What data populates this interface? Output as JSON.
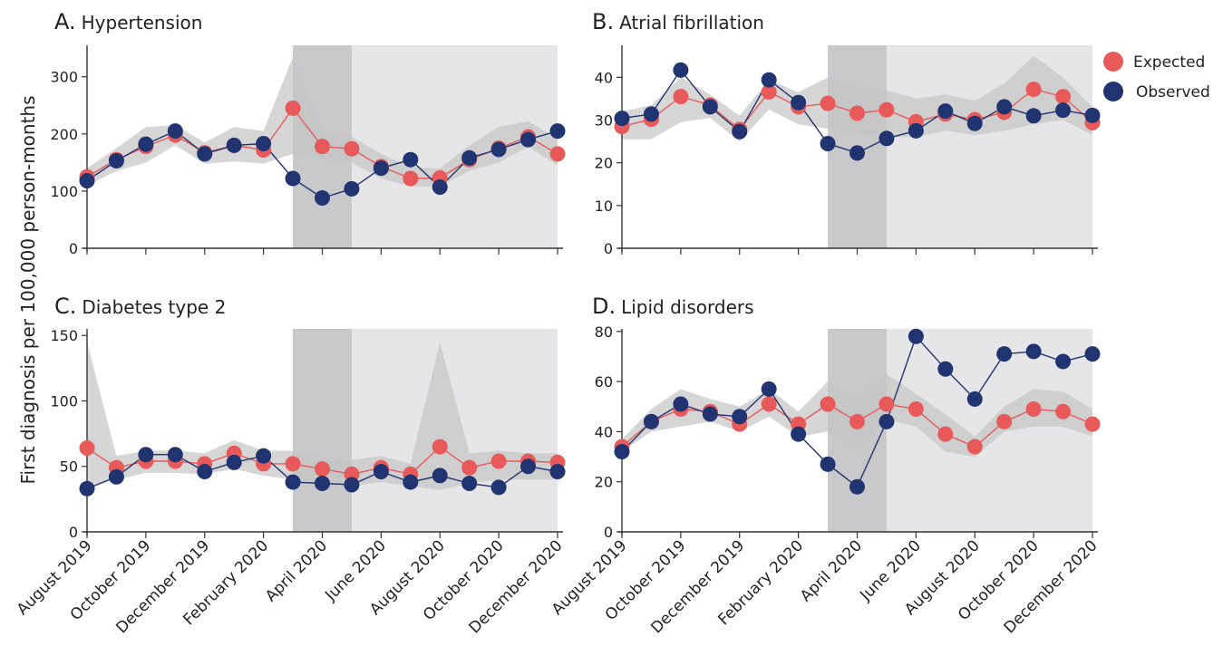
{
  "figure": {
    "ylabel": "First diagnosis per 100,000 person-months",
    "legend_placement": "top-right",
    "colors": {
      "expected": "#e85a5a",
      "observed": "#1f3470",
      "ci_band": "#c4c4c4",
      "lockdown_shade": "#c9c9cc",
      "post_shade": "#e6e6e8"
    },
    "legend": [
      {
        "key": "expected",
        "label": "Expected"
      },
      {
        "key": "observed",
        "label": "Observed"
      }
    ]
  },
  "chart_data": [
    {
      "type": "line",
      "panel": "A.",
      "title": "Hypertension",
      "x": [
        "August 2019",
        "September 2019",
        "October 2019",
        "November 2019",
        "December 2019",
        "January 2020",
        "February 2020",
        "March 2020",
        "April 2020",
        "May 2020",
        "June 2020",
        "July 2020",
        "August 2020",
        "September 2020",
        "October 2020",
        "November 2020",
        "December 2020"
      ],
      "x_tick_labels": [
        "August 2019",
        "October 2019",
        "December 2019",
        "February 2020",
        "April 2020",
        "June 2020",
        "August 2020",
        "October 2020",
        "December 2020"
      ],
      "ylim": [
        0,
        355
      ],
      "yticks": [
        0,
        100,
        200,
        300
      ],
      "lockdown_period": [
        "March 2020",
        "May 2020"
      ],
      "post_period": [
        "May 2020",
        "December 2020"
      ],
      "series": [
        {
          "name": "Expected",
          "values": [
            125,
            155,
            178,
            198,
            167,
            180,
            172,
            245,
            178,
            174,
            143,
            122,
            123,
            155,
            175,
            195,
            165
          ]
        },
        {
          "name": "Observed",
          "values": [
            118,
            153,
            182,
            205,
            165,
            180,
            183,
            122,
            88,
            104,
            140,
            155,
            107,
            158,
            173,
            190,
            205
          ]
        }
      ],
      "band_lower": [
        110,
        135,
        150,
        180,
        148,
        152,
        148,
        165,
        155,
        150,
        122,
        108,
        108,
        135,
        150,
        178,
        145
      ],
      "band_upper": [
        140,
        175,
        212,
        215,
        185,
        212,
        205,
        335,
        205,
        195,
        165,
        142,
        140,
        180,
        212,
        222,
        192
      ]
    },
    {
      "type": "line",
      "panel": "B.",
      "title": "Atrial fibrillation",
      "x": [
        "August 2019",
        "September 2019",
        "October 2019",
        "November 2019",
        "December 2019",
        "January 2020",
        "February 2020",
        "March 2020",
        "April 2020",
        "May 2020",
        "June 2020",
        "July 2020",
        "August 2020",
        "September 2020",
        "October 2020",
        "November 2020",
        "December 2020"
      ],
      "x_tick_labels": [
        "August 2019",
        "October 2019",
        "December 2019",
        "February 2020",
        "April 2020",
        "June 2020",
        "August 2020",
        "October 2020",
        "December 2020"
      ],
      "ylim": [
        0,
        47.5
      ],
      "yticks": [
        0,
        10,
        20,
        30,
        40
      ],
      "lockdown_period": [
        "March 2020",
        "May 2020"
      ],
      "post_period": [
        "May 2020",
        "December 2020"
      ],
      "series": [
        {
          "name": "Expected",
          "values": [
            28.5,
            30.2,
            35.5,
            33.5,
            27.8,
            36.6,
            33.1,
            33.9,
            31.6,
            32.4,
            29.6,
            31.4,
            30.1,
            31.8,
            37.2,
            35.5,
            29.4
          ]
        },
        {
          "name": "Observed",
          "values": [
            30.4,
            31.4,
            41.7,
            33.1,
            27.3,
            39.4,
            34.1,
            24.5,
            22.3,
            25.7,
            27.5,
            32.1,
            29.2,
            33.1,
            31.0,
            32.3,
            31.1
          ]
        }
      ],
      "band_lower": [
        25.5,
        25.5,
        29.5,
        30.5,
        25.0,
        32.5,
        29.0,
        28.0,
        26.5,
        26.0,
        26.0,
        27.5,
        26.5,
        27.5,
        29.0,
        30.0,
        26.5
      ],
      "band_upper": [
        32.0,
        33.5,
        40.0,
        36.0,
        31.0,
        39.5,
        36.5,
        40.0,
        38.0,
        37.0,
        35.0,
        36.0,
        34.5,
        38.5,
        45.0,
        40.0,
        33.0
      ]
    },
    {
      "type": "line",
      "panel": "C.",
      "title": "Diabetes type 2",
      "x": [
        "August 2019",
        "September 2019",
        "October 2019",
        "November 2019",
        "December 2019",
        "January 2020",
        "February 2020",
        "March 2020",
        "April 2020",
        "May 2020",
        "June 2020",
        "July 2020",
        "August 2020",
        "September 2020",
        "October 2020",
        "November 2020",
        "December 2020"
      ],
      "x_tick_labels": [
        "August 2019",
        "October 2019",
        "December 2019",
        "February 2020",
        "April 2020",
        "June 2020",
        "August 2020",
        "October 2020",
        "December 2020"
      ],
      "ylim": [
        0,
        155
      ],
      "yticks": [
        0,
        50,
        100,
        150
      ],
      "lockdown_period": [
        "March 2020",
        "May 2020"
      ],
      "post_period": [
        "May 2020",
        "December 2020"
      ],
      "series": [
        {
          "name": "Expected",
          "values": [
            64,
            49,
            54,
            54,
            52,
            60,
            52,
            52,
            48,
            44,
            49,
            44,
            65,
            49,
            54,
            54,
            53
          ]
        },
        {
          "name": "Observed",
          "values": [
            33,
            42,
            59,
            59,
            46,
            53,
            58,
            38,
            37,
            36,
            46,
            38,
            43,
            37,
            34,
            50,
            46
          ]
        }
      ],
      "band_lower": [
        35,
        40,
        45,
        45,
        44,
        48,
        43,
        40,
        36,
        35,
        38,
        35,
        32,
        37,
        40,
        40,
        40
      ],
      "band_upper": [
        145,
        58,
        62,
        62,
        60,
        70,
        62,
        62,
        57,
        55,
        58,
        52,
        145,
        60,
        62,
        60,
        60
      ]
    },
    {
      "type": "line",
      "panel": "D.",
      "title": "Lipid disorders",
      "x": [
        "August 2019",
        "September 2019",
        "October 2019",
        "November 2019",
        "December 2019",
        "January 2020",
        "February 2020",
        "March 2020",
        "April 2020",
        "May 2020",
        "June 2020",
        "July 2020",
        "August 2020",
        "September 2020",
        "October 2020",
        "November 2020",
        "December 2020"
      ],
      "x_tick_labels": [
        "August 2019",
        "October 2019",
        "December 2019",
        "February 2020",
        "April 2020",
        "June 2020",
        "August 2020",
        "October 2020",
        "December 2020"
      ],
      "ylim": [
        0,
        81
      ],
      "yticks": [
        0,
        20,
        40,
        60,
        80
      ],
      "lockdown_period": [
        "March 2020",
        "May 2020"
      ],
      "post_period": [
        "May 2020",
        "December 2020"
      ],
      "series": [
        {
          "name": "Expected",
          "values": [
            34,
            44,
            49,
            48,
            43,
            51,
            43,
            51,
            44,
            51,
            49,
            39,
            34,
            44,
            49,
            48,
            43
          ]
        },
        {
          "name": "Observed",
          "values": [
            32,
            44,
            51,
            47,
            46,
            57,
            39,
            27,
            18,
            44,
            78,
            65,
            53,
            71,
            72,
            68,
            71
          ]
        }
      ],
      "band_lower": [
        32,
        40,
        42,
        44,
        40,
        46,
        38,
        40,
        32,
        45,
        42,
        32,
        30,
        40,
        42,
        42,
        38
      ],
      "band_upper": [
        37,
        49,
        57,
        53,
        50,
        57,
        48,
        60,
        53,
        63,
        55,
        47,
        38,
        50,
        57,
        56,
        49
      ]
    }
  ]
}
